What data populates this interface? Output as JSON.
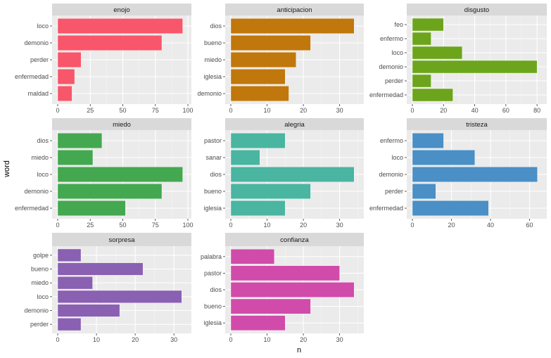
{
  "chart_data": {
    "type": "bar",
    "orientation": "horizontal",
    "faceted": true,
    "xlabel": "n",
    "ylabel": "word",
    "grid": true,
    "legend": "none",
    "panels": [
      {
        "title": "enojo",
        "color": "#F8566A",
        "categories": [
          "loco",
          "demonio",
          "perder",
          "enfermedad",
          "maldad"
        ],
        "values": [
          96,
          80,
          18,
          13,
          11
        ],
        "xlim": [
          0,
          100
        ],
        "xticks": [
          0,
          25,
          50,
          75,
          100
        ]
      },
      {
        "title": "anticipacion",
        "color": "#C0770B",
        "categories": [
          "dios",
          "bueno",
          "miedo",
          "iglesia",
          "demonio"
        ],
        "values": [
          34,
          22,
          18,
          15,
          16
        ],
        "xlim": [
          0,
          35.7
        ],
        "xticks": [
          0,
          10,
          20,
          30
        ]
      },
      {
        "title": "disgusto",
        "color": "#6CA51B",
        "categories": [
          "feo",
          "enfermo",
          "loco",
          "demonio",
          "perder",
          "enfermedad"
        ],
        "values": [
          20,
          12,
          32,
          80,
          12,
          26
        ],
        "xlim": [
          0,
          84
        ],
        "xticks": [
          0,
          20,
          40,
          60,
          80
        ]
      },
      {
        "title": "miedo",
        "color": "#43A84F",
        "categories": [
          "dios",
          "miedo",
          "loco",
          "demonio",
          "enfermedad"
        ],
        "values": [
          34,
          27,
          96,
          80,
          52
        ],
        "xlim": [
          0,
          100
        ],
        "xticks": [
          0,
          25,
          50,
          75,
          100
        ]
      },
      {
        "title": "alegria",
        "color": "#4AB5A0",
        "categories": [
          "pastor",
          "sanar",
          "dios",
          "bueno",
          "iglesia"
        ],
        "values": [
          15,
          8,
          34,
          22,
          15
        ],
        "xlim": [
          0,
          35.7
        ],
        "xticks": [
          0,
          10,
          20,
          30
        ]
      },
      {
        "title": "tristeza",
        "color": "#4A8FC6",
        "categories": [
          "enfermo",
          "loco",
          "demonio",
          "perder",
          "enfermedad"
        ],
        "values": [
          16,
          32,
          64,
          12,
          39
        ],
        "xlim": [
          0,
          67
        ],
        "xticks": [
          0,
          20,
          40,
          60
        ]
      },
      {
        "title": "sorpresa",
        "color": "#8A60B2",
        "categories": [
          "golpe",
          "bueno",
          "miedo",
          "loco",
          "demonio",
          "perder"
        ],
        "values": [
          6,
          22,
          9,
          32,
          16,
          6
        ],
        "xlim": [
          0,
          33.6
        ],
        "xticks": [
          0,
          10,
          20,
          30
        ]
      },
      {
        "title": "confianza",
        "color": "#D14BAA",
        "categories": [
          "palabra",
          "pastor",
          "dios",
          "bueno",
          "iglesia"
        ],
        "values": [
          12,
          30,
          34,
          22,
          15
        ],
        "xlim": [
          0,
          35.7
        ],
        "xticks": [
          0,
          10,
          20,
          30
        ]
      }
    ]
  }
}
